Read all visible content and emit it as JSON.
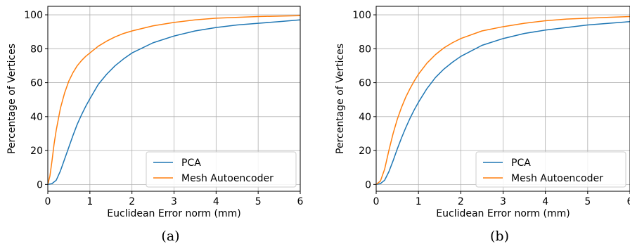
{
  "chart_data": [
    {
      "type": "line",
      "caption": "(a)",
      "xlabel": "Euclidean Error norm (mm)",
      "ylabel": "Percentage of Vertices",
      "xlim": [
        0,
        6
      ],
      "ylim": [
        -4,
        105
      ],
      "xticks": [
        0,
        1,
        2,
        3,
        4,
        5,
        6
      ],
      "yticks": [
        0,
        20,
        40,
        60,
        80,
        100
      ],
      "grid": true,
      "legend_position": "bottom-right",
      "series": [
        {
          "name": "PCA",
          "color": "#1f77b4",
          "x": [
            0,
            0.1,
            0.2,
            0.3,
            0.4,
            0.5,
            0.6,
            0.7,
            0.8,
            0.9,
            1.0,
            1.2,
            1.4,
            1.6,
            1.8,
            2.0,
            2.5,
            3.0,
            3.5,
            4.0,
            4.5,
            5.0,
            5.5,
            6.0
          ],
          "y": [
            0,
            0.5,
            2.5,
            8,
            15,
            22,
            29,
            35.5,
            41,
            46,
            50.5,
            59,
            65,
            70,
            74,
            77.5,
            83.5,
            87.5,
            90.5,
            92.5,
            94,
            95,
            96,
            97
          ]
        },
        {
          "name": "Mesh Autoencoder",
          "color": "#ff7f0e",
          "x": [
            0,
            0.05,
            0.1,
            0.15,
            0.2,
            0.3,
            0.4,
            0.5,
            0.6,
            0.7,
            0.8,
            0.9,
            1.0,
            1.2,
            1.4,
            1.6,
            1.8,
            2.0,
            2.5,
            3.0,
            3.5,
            4.0,
            5.0,
            6.0
          ],
          "y": [
            0,
            5,
            14,
            24,
            32,
            45,
            54,
            61,
            66,
            70,
            73,
            75.5,
            77.5,
            81.5,
            84.5,
            87,
            89,
            90.5,
            93.5,
            95.5,
            97,
            98,
            99,
            99.5
          ]
        }
      ]
    },
    {
      "type": "line",
      "caption": "(b)",
      "xlabel": "Euclidean Error norm (mm)",
      "ylabel": "Percentage of Vertices",
      "xlim": [
        0,
        6
      ],
      "ylim": [
        -4,
        105
      ],
      "xticks": [
        0,
        1,
        2,
        3,
        4,
        5,
        6
      ],
      "yticks": [
        0,
        20,
        40,
        60,
        80,
        100
      ],
      "grid": true,
      "legend_position": "bottom-right",
      "series": [
        {
          "name": "PCA",
          "color": "#1f77b4",
          "x": [
            0,
            0.1,
            0.2,
            0.3,
            0.4,
            0.5,
            0.6,
            0.7,
            0.8,
            0.9,
            1.0,
            1.2,
            1.4,
            1.6,
            1.8,
            2.0,
            2.5,
            3.0,
            3.5,
            4.0,
            4.5,
            5.0,
            5.5,
            6.0
          ],
          "y": [
            0,
            0.5,
            2.5,
            7.5,
            14,
            21,
            27.5,
            33.5,
            39,
            44,
            48.5,
            56.5,
            63,
            68,
            72,
            75.5,
            82,
            86,
            89,
            91,
            92.5,
            94,
            95,
            96
          ]
        },
        {
          "name": "Mesh Autoencoder",
          "color": "#ff7f0e",
          "x": [
            0,
            0.1,
            0.2,
            0.3,
            0.4,
            0.5,
            0.6,
            0.7,
            0.8,
            0.9,
            1.0,
            1.2,
            1.4,
            1.6,
            1.8,
            2.0,
            2.5,
            3.0,
            3.5,
            4.0,
            4.5,
            5.0,
            5.5,
            6.0
          ],
          "y": [
            0,
            2,
            9,
            20,
            30,
            38.5,
            45.5,
            51.5,
            56.5,
            61,
            65,
            71.5,
            76.5,
            80.5,
            83.5,
            86,
            90.5,
            93,
            95,
            96.5,
            97.5,
            98,
            98.5,
            99
          ]
        }
      ]
    }
  ]
}
